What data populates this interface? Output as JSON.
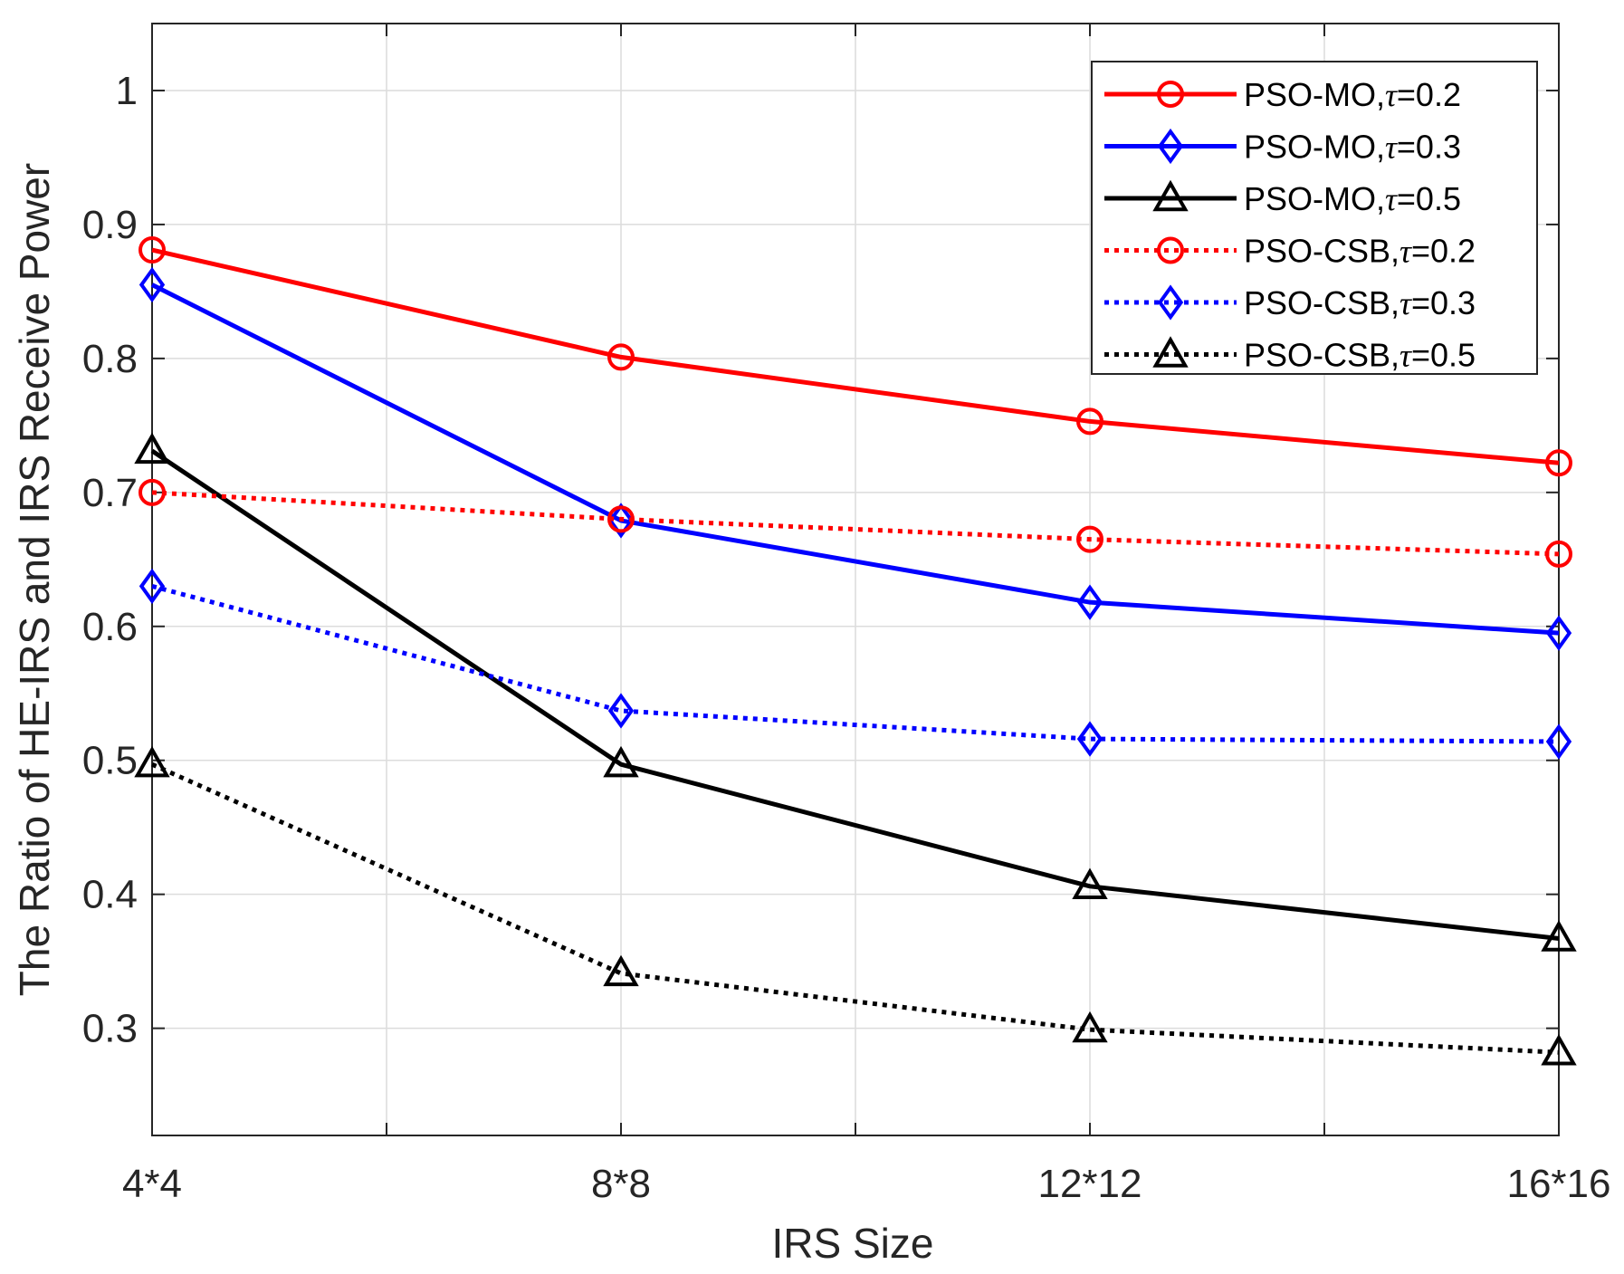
{
  "chart_data": {
    "type": "line",
    "title": "",
    "xlabel": "IRS Size",
    "ylabel": "The Ratio of HE-IRS and IRS Receive Power",
    "categories": [
      "4*4",
      "8*8",
      "12*12",
      "16*16"
    ],
    "ylim": [
      0.22,
      1.05
    ],
    "yticks": [
      0.3,
      0.4,
      0.5,
      0.6,
      0.7,
      0.8,
      0.9,
      1
    ],
    "ytick_labels": [
      "0.3",
      "0.4",
      "0.5",
      "0.6",
      "0.7",
      "0.8",
      "0.9",
      "1"
    ],
    "grid": true,
    "legend_position": "top-right",
    "series": [
      {
        "name": "PSO-MO,",
        "tau_label": "τ",
        "tau_value": "=0.2",
        "color": "#ff0000",
        "style": "solid",
        "marker": "circle",
        "values": [
          0.881,
          0.801,
          0.753,
          0.722
        ]
      },
      {
        "name": "PSO-MO,",
        "tau_label": "τ",
        "tau_value": "=0.3",
        "color": "#0000ff",
        "style": "solid",
        "marker": "diamond",
        "values": [
          0.855,
          0.679,
          0.618,
          0.595
        ]
      },
      {
        "name": "PSO-MO,",
        "tau_label": "τ",
        "tau_value": "=0.5",
        "color": "#000000",
        "style": "solid",
        "marker": "triangle",
        "values": [
          0.731,
          0.497,
          0.406,
          0.367
        ]
      },
      {
        "name": "PSO-CSB,",
        "tau_label": "τ",
        "tau_value": "=0.2",
        "color": "#ff0000",
        "style": "dotted",
        "marker": "circle",
        "values": [
          0.7,
          0.68,
          0.665,
          0.654
        ]
      },
      {
        "name": "PSO-CSB,",
        "tau_label": "τ",
        "tau_value": "=0.3",
        "color": "#0000ff",
        "style": "dotted",
        "marker": "diamond",
        "values": [
          0.63,
          0.537,
          0.516,
          0.514
        ]
      },
      {
        "name": "PSO-CSB,",
        "tau_label": "τ",
        "tau_value": "=0.5",
        "color": "#000000",
        "style": "dotted",
        "marker": "triangle",
        "values": [
          0.497,
          0.341,
          0.299,
          0.282
        ]
      }
    ]
  }
}
